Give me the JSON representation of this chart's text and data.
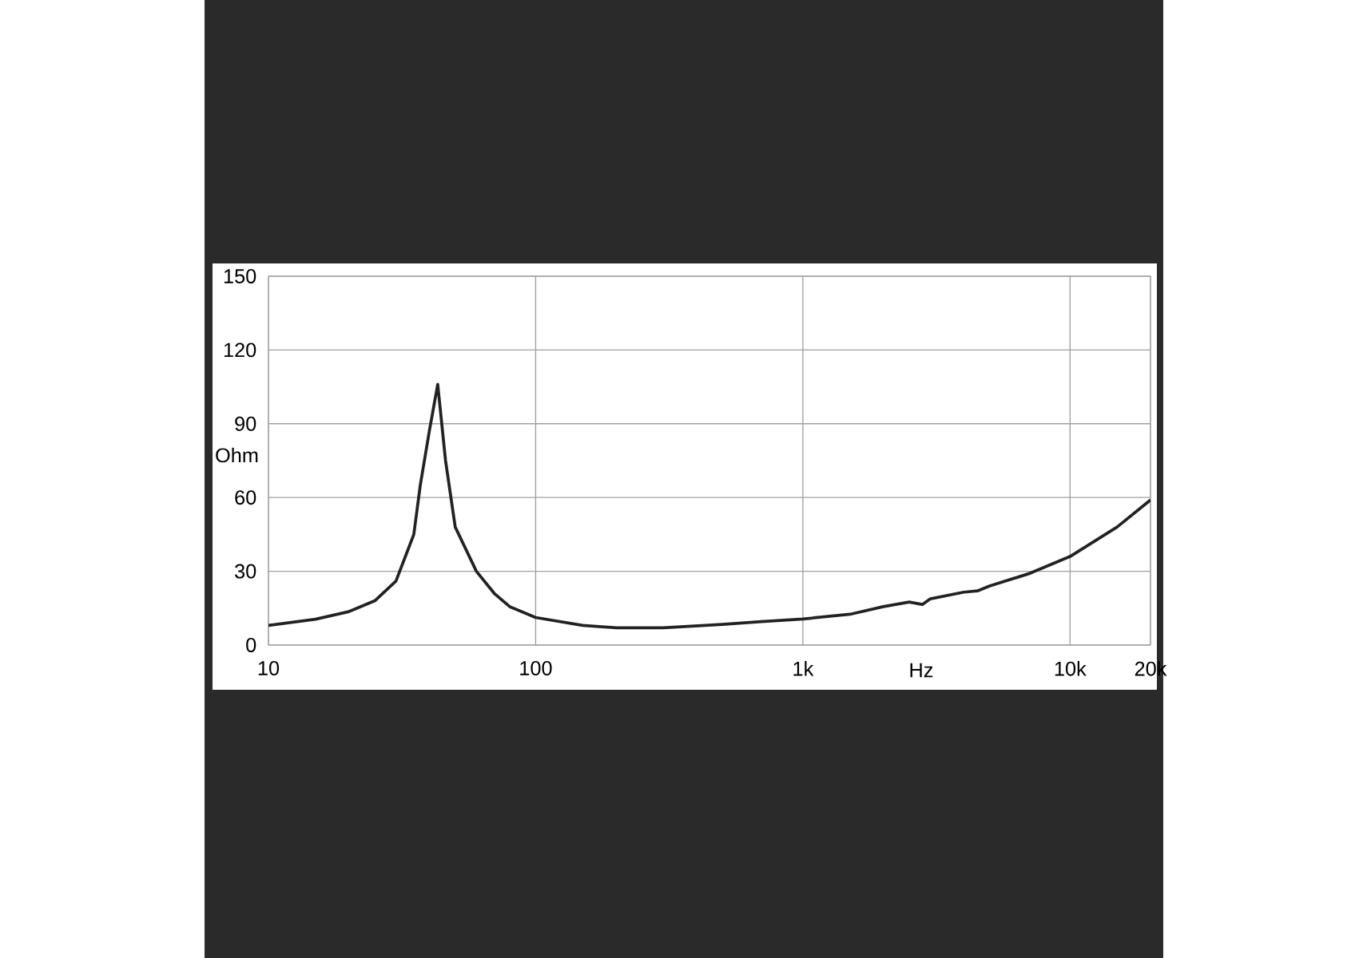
{
  "chart_data": {
    "type": "line",
    "xlabel": "Hz",
    "ylabel": "Ohm",
    "log": "x",
    "grid": true,
    "marker": "none",
    "line_style": "solid",
    "x": [
      10,
      15,
      20,
      25,
      30,
      35,
      37,
      40,
      43,
      46,
      50,
      60,
      70,
      80,
      100,
      150,
      200,
      300,
      500,
      700,
      1000,
      1500,
      2000,
      2500,
      2800,
      3000,
      4000,
      4500,
      5000,
      7000,
      10000,
      15000,
      20000
    ],
    "values": [
      8,
      10.5,
      13.6,
      18,
      26,
      45,
      65,
      87,
      106,
      75,
      48,
      30,
      21,
      15.6,
      11.2,
      8,
      7,
      7,
      8.4,
      9.5,
      10.6,
      12.5,
      15.6,
      17.5,
      16.5,
      18.8,
      21.5,
      22,
      24,
      29,
      36,
      48,
      59
    ],
    "color": "#222222",
    "xlim": [
      10,
      20000
    ],
    "ylim": [
      0,
      150
    ],
    "xticks": [
      10,
      100,
      {
        "value": 1000,
        "label": "1k"
      },
      {
        "value": 10000,
        "label": "10k"
      },
      {
        "value": 20000,
        "label": "20k"
      }
    ],
    "yticks": [
      0,
      30,
      60,
      90,
      120,
      150
    ]
  }
}
